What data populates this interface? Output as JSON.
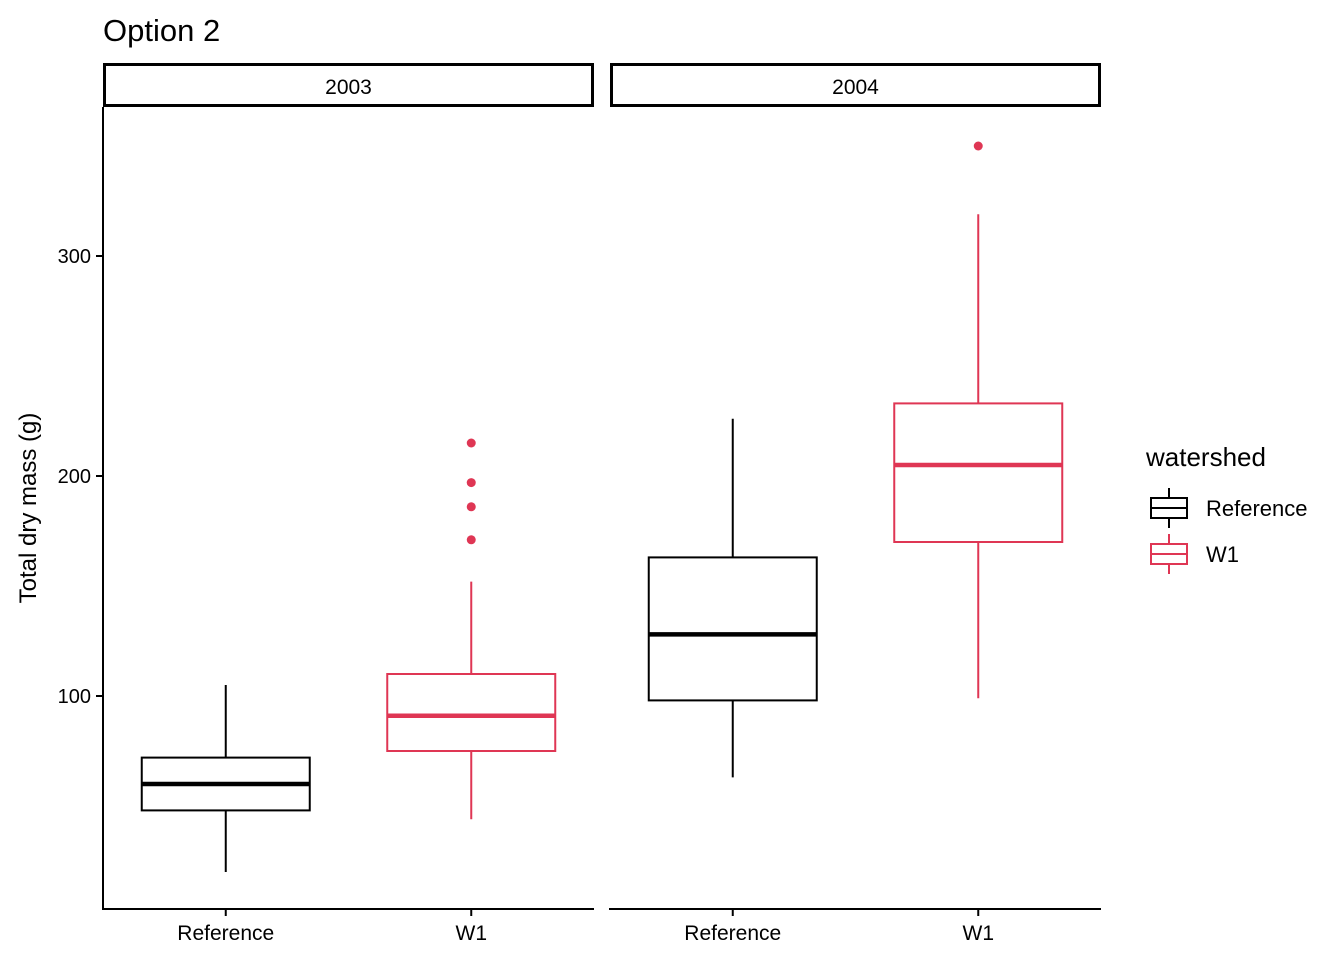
{
  "chart_data": {
    "type": "boxplot",
    "title": "Option 2",
    "ylabel": "Total dry mass (g)",
    "xlabel": "",
    "ylim": [
      0,
      370
    ],
    "y_ticks": [
      100,
      200,
      300
    ],
    "facet_variable": "year",
    "facets": [
      {
        "label": "2003",
        "categories": [
          "Reference",
          "W1"
        ],
        "boxes": [
          {
            "category": "Reference",
            "group": "Reference",
            "whisker_low": 20,
            "q1": 48,
            "median": 60,
            "q3": 72,
            "whisker_high": 105,
            "outliers": []
          },
          {
            "category": "W1",
            "group": "W1",
            "whisker_low": 44,
            "q1": 75,
            "median": 91,
            "q3": 110,
            "whisker_high": 152,
            "outliers": [
              171,
              186,
              197,
              215
            ]
          }
        ]
      },
      {
        "label": "2004",
        "categories": [
          "Reference",
          "W1"
        ],
        "boxes": [
          {
            "category": "Reference",
            "group": "Reference",
            "whisker_low": 63,
            "q1": 98,
            "median": 128,
            "q3": 163,
            "whisker_high": 226,
            "outliers": []
          },
          {
            "category": "W1",
            "group": "W1",
            "whisker_low": 99,
            "q1": 170,
            "median": 205,
            "q3": 233,
            "whisker_high": 319,
            "outliers": [
              350
            ]
          }
        ]
      }
    ],
    "legend": {
      "title": "watershed",
      "position": "right",
      "items": [
        {
          "label": "Reference",
          "color": "#000000"
        },
        {
          "label": "W1",
          "color": "#DF3654"
        }
      ]
    },
    "colors": {
      "Reference": "#000000",
      "W1": "#DF3654"
    },
    "grid": false
  }
}
